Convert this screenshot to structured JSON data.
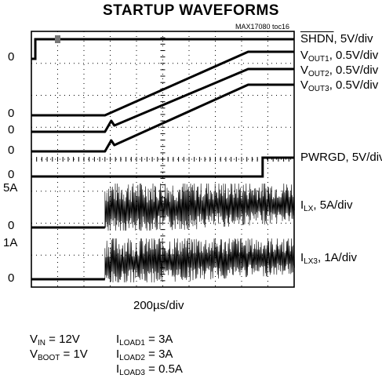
{
  "chart_data": {
    "type": "line",
    "title": "STARTUP WAVEFORMS",
    "figure_tag": "MAX17080 toc16",
    "timebase": "200µs/div",
    "time_divisions": 10,
    "voltage_divisions": 8,
    "x_unit": "µs",
    "x_range_us": [
      0,
      2000
    ],
    "channels": [
      {
        "label_main": "SHDN",
        "label_sub": "",
        "scale": "5V/div",
        "trace": {
          "type": "step",
          "t_step_us": 30,
          "level_before": 0,
          "level_after": 5,
          "unit": "V"
        }
      },
      {
        "label_main": "V",
        "label_sub": "OUT1",
        "scale": "0.5V/div",
        "trace": {
          "type": "ramp",
          "t_start_us": 560,
          "t_end_us": 1650,
          "level_start": 0,
          "level_end": 1.5,
          "unit": "V"
        }
      },
      {
        "label_main": "V",
        "label_sub": "OUT2",
        "scale": "0.5V/div",
        "trace": {
          "type": "ramp",
          "t_start_us": 560,
          "t_end_us": 1650,
          "level_start": 0,
          "level_end": 1.0,
          "unit": "V"
        }
      },
      {
        "label_main": "V",
        "label_sub": "OUT3",
        "scale": "0.5V/div",
        "trace": {
          "type": "ramp",
          "t_start_us": 560,
          "t_end_us": 1650,
          "level_start": 0,
          "level_end": 0.9,
          "unit": "V"
        }
      },
      {
        "label_main": "PWRGD",
        "label_sub": "",
        "scale": "5V/div",
        "trace": {
          "type": "step",
          "t_step_us": 1760,
          "level_before": 0,
          "level_after": 5,
          "unit": "V"
        }
      },
      {
        "label_main": "I",
        "label_sub": "LX",
        "scale": "5A/div",
        "trace": {
          "type": "switching",
          "t_start_us": 560,
          "peak": 5,
          "unit": "A"
        }
      },
      {
        "label_main": "I",
        "label_sub": "LX3",
        "scale": "1A/div",
        "trace": {
          "type": "switching",
          "t_start_us": 560,
          "peak": 1,
          "unit": "A"
        }
      }
    ],
    "left_labels": [
      "0",
      "0",
      "0",
      "0",
      "0",
      "5A",
      "0",
      "1A",
      "0"
    ]
  },
  "conditions": {
    "left": [
      {
        "main": "V",
        "sub": "IN",
        "rest": " = 12V"
      },
      {
        "main": "V",
        "sub": "BOOT",
        "rest": " = 1V"
      }
    ],
    "right": [
      {
        "main": "I",
        "sub": "LOAD1",
        "rest": " = 3A"
      },
      {
        "main": "I",
        "sub": "LOAD2",
        "rest": " = 3A"
      },
      {
        "main": "I",
        "sub": "LOAD3",
        "rest": " = 0.5A"
      }
    ]
  }
}
